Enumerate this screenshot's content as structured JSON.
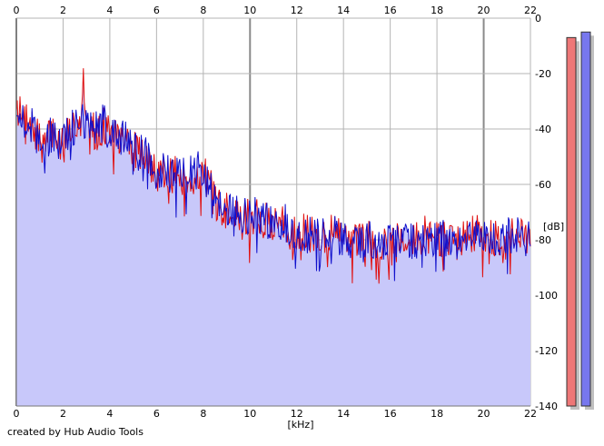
{
  "credit": "created by Hub Audio Tools",
  "chart_data": {
    "type": "line",
    "title": "",
    "xlabel": "[kHz]",
    "ylabel": "[dB]",
    "xlim": [
      0,
      22
    ],
    "ylim": [
      -140,
      0
    ],
    "x_ticks": [
      0,
      2,
      4,
      6,
      8,
      10,
      12,
      14,
      16,
      18,
      20,
      22
    ],
    "y_ticks": [
      0,
      -20,
      -40,
      -60,
      -80,
      -100,
      -120,
      -140
    ],
    "x_tick_labels": [
      "0",
      "2",
      "4",
      "6",
      "8",
      "10",
      "12",
      "14",
      "16",
      "18",
      "20",
      "22"
    ],
    "y_tick_labels": [
      "0",
      "-20",
      "-40",
      "-60",
      "-80",
      "-100",
      "-120",
      "-140"
    ],
    "grid": true,
    "colors": {
      "fill": "#c8c8fa",
      "left": "#e01010",
      "right": "#1010cc",
      "grid": "#b4b4b4",
      "major_grid": "#8a8a8a",
      "level_left": "#ee7777",
      "level_right": "#7777ee",
      "level_shadow": "#c0c0c0"
    },
    "series": [
      {
        "color": "#e01010",
        "x": [
          0.0,
          0.25,
          0.5,
          0.75,
          1.0,
          1.25,
          1.5,
          1.75,
          2.0,
          2.25,
          2.5,
          2.75,
          2.85,
          3.0,
          3.25,
          3.5,
          3.75,
          4.0,
          4.25,
          4.5,
          4.75,
          5.0,
          5.25,
          5.5,
          5.75,
          6.0,
          6.25,
          6.5,
          6.75,
          7.0,
          7.25,
          7.5,
          7.75,
          8.0,
          8.25,
          8.5,
          8.75,
          9.0,
          9.25,
          9.5,
          9.75,
          10.0,
          10.25,
          10.5,
          10.75,
          11.0,
          11.25,
          11.5,
          11.75,
          12.0,
          12.5,
          13.0,
          13.5,
          14.0,
          14.5,
          15.0,
          15.5,
          16.0,
          16.5,
          17.0,
          17.5,
          18.0,
          18.5,
          19.0,
          19.5,
          20.0,
          20.5,
          21.0,
          21.5,
          22.0
        ],
        "values": [
          -30,
          -38,
          -35,
          -42,
          -44,
          -47,
          -40,
          -43,
          -45,
          -41,
          -38,
          -35,
          -20,
          -33,
          -40,
          -42,
          -38,
          -41,
          -42,
          -45,
          -43,
          -48,
          -47,
          -50,
          -54,
          -56,
          -55,
          -58,
          -56,
          -57,
          -59,
          -57,
          -56,
          -55,
          -60,
          -66,
          -69,
          -70,
          -68,
          -71,
          -70,
          -73,
          -70,
          -72,
          -74,
          -73,
          -74,
          -75,
          -76,
          -77,
          -78,
          -79,
          -77,
          -79,
          -81,
          -79,
          -82,
          -80,
          -79,
          -81,
          -78,
          -80,
          -79,
          -81,
          -78,
          -77,
          -80,
          -78,
          -79,
          -80
        ]
      },
      {
        "color": "#1010cc",
        "x": [
          0.0,
          0.25,
          0.5,
          0.75,
          1.0,
          1.25,
          1.5,
          1.75,
          2.0,
          2.25,
          2.5,
          2.75,
          3.0,
          3.25,
          3.5,
          3.75,
          4.0,
          4.25,
          4.5,
          4.75,
          5.0,
          5.25,
          5.5,
          5.75,
          6.0,
          6.25,
          6.5,
          6.75,
          7.0,
          7.25,
          7.5,
          7.75,
          8.0,
          8.25,
          8.5,
          8.75,
          9.0,
          9.25,
          9.5,
          9.75,
          10.0,
          10.25,
          10.5,
          10.75,
          11.0,
          11.25,
          11.5,
          11.75,
          12.0,
          12.5,
          13.0,
          13.5,
          14.0,
          14.5,
          15.0,
          15.5,
          16.0,
          16.5,
          17.0,
          17.5,
          18.0,
          18.5,
          19.0,
          19.5,
          20.0,
          20.5,
          21.0,
          21.5,
          22.0
        ],
        "values": [
          -32,
          -36,
          -37,
          -40,
          -45,
          -46,
          -42,
          -44,
          -44,
          -40,
          -39,
          -37,
          -36,
          -41,
          -40,
          -37,
          -40,
          -43,
          -44,
          -42,
          -47,
          -48,
          -49,
          -53,
          -55,
          -54,
          -56,
          -57,
          -56,
          -58,
          -56,
          -55,
          -54,
          -61,
          -65,
          -67,
          -69,
          -69,
          -70,
          -71,
          -72,
          -71,
          -72,
          -73,
          -74,
          -75,
          -74,
          -76,
          -77,
          -78,
          -78,
          -78,
          -79,
          -80,
          -80,
          -81,
          -79,
          -80,
          -80,
          -79,
          -79,
          -80,
          -80,
          -79,
          -78,
          -79,
          -79,
          -78,
          -80
        ]
      }
    ],
    "level_meters": [
      {
        "color": "#ee7777",
        "value": -7
      },
      {
        "color": "#7777ee",
        "value": -5
      }
    ]
  }
}
